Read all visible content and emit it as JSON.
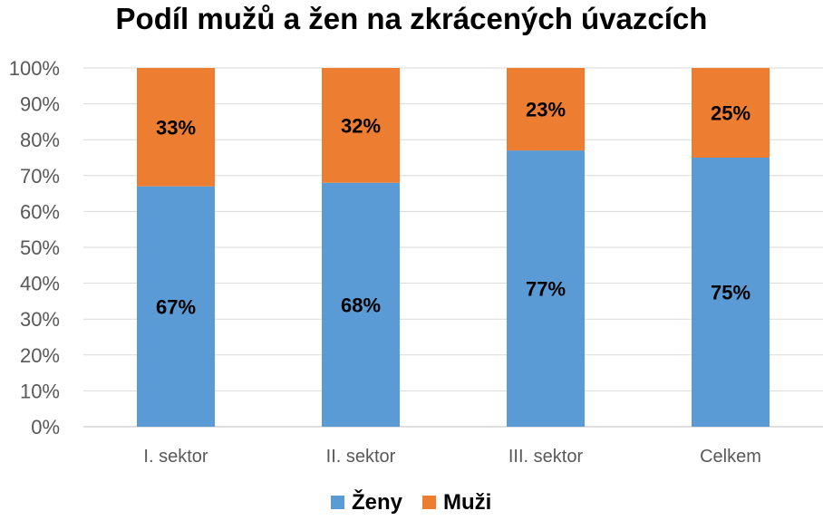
{
  "chart_data": {
    "type": "bar",
    "stacked": true,
    "title": "Podíl mužů a žen na zkrácených úvazcích",
    "xlabel": "",
    "ylabel": "",
    "categories": [
      "I. sektor",
      "II. sektor",
      "III. sektor",
      "Celkem"
    ],
    "series": [
      {
        "name": "Ženy",
        "values": [
          67,
          68,
          77,
          75
        ],
        "color": "#5B9BD5"
      },
      {
        "name": "Muži",
        "values": [
          33,
          32,
          23,
          25
        ],
        "color": "#ED7D31"
      }
    ],
    "ylim": [
      0,
      100
    ],
    "yticks": [
      "0%",
      "10%",
      "20%",
      "30%",
      "40%",
      "50%",
      "60%",
      "70%",
      "80%",
      "90%",
      "100%"
    ],
    "value_suffix": "%",
    "grid": true,
    "legend": "bottom"
  }
}
